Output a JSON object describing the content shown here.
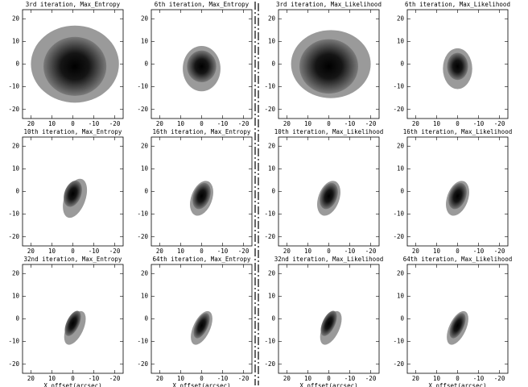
{
  "chart_data": [
    {
      "type": "image",
      "title": "3rd iteration, Max_Entropy",
      "xlim": [
        24,
        -24
      ],
      "ylim": [
        -24,
        24
      ],
      "xticks": [
        20,
        10,
        0,
        -10,
        -20
      ],
      "yticks": [
        -20,
        -10,
        0,
        10,
        20
      ]
    },
    {
      "type": "image",
      "title": "6th iteration, Max_Entropy",
      "xlim": [
        24,
        -24
      ],
      "ylim": [
        -24,
        24
      ],
      "xticks": [
        20,
        10,
        0,
        -10,
        -20
      ],
      "yticks": [
        -20,
        -10,
        0,
        10,
        20
      ]
    },
    {
      "type": "image",
      "title": "3rd iteration, Max_Likelihood",
      "xlim": [
        24,
        -24
      ],
      "ylim": [
        -24,
        24
      ],
      "xticks": [
        20,
        10,
        0,
        -10,
        -20
      ],
      "yticks": [
        -20,
        -10,
        0,
        10,
        20
      ]
    },
    {
      "type": "image",
      "title": "6th iteration, Max_Likelihood",
      "xlim": [
        24,
        -24
      ],
      "ylim": [
        -24,
        24
      ],
      "xticks": [
        20,
        10,
        0,
        -10,
        -20
      ],
      "yticks": [
        -20,
        -10,
        0,
        10,
        20
      ]
    },
    {
      "type": "image",
      "title": "10th iteration, Max_Entropy",
      "xlim": [
        24,
        -24
      ],
      "ylim": [
        -24,
        24
      ],
      "xticks": [
        20,
        10,
        0,
        -10,
        -20
      ],
      "yticks": [
        -20,
        -10,
        0,
        10,
        20
      ]
    },
    {
      "type": "image",
      "title": "16th iteration, Max_Entropy",
      "xlim": [
        24,
        -24
      ],
      "ylim": [
        -24,
        24
      ],
      "xticks": [
        20,
        10,
        0,
        -10,
        -20
      ],
      "yticks": [
        -20,
        -10,
        0,
        10,
        20
      ]
    },
    {
      "type": "image",
      "title": "10th iteration, Max_Likelihood",
      "xlim": [
        24,
        -24
      ],
      "ylim": [
        -24,
        24
      ],
      "xticks": [
        20,
        10,
        0,
        -10,
        -20
      ],
      "yticks": [
        -20,
        -10,
        0,
        10,
        20
      ]
    },
    {
      "type": "image",
      "title": "16th iteration, Max_Likelihood",
      "xlim": [
        24,
        -24
      ],
      "ylim": [
        -24,
        24
      ],
      "xticks": [
        20,
        10,
        0,
        -10,
        -20
      ],
      "yticks": [
        -20,
        -10,
        0,
        10,
        20
      ]
    },
    {
      "type": "image",
      "title": "32nd iteration, Max_Entropy",
      "xlabel": "X offset(arcsec)",
      "xlim": [
        24,
        -24
      ],
      "ylim": [
        -24,
        24
      ],
      "xticks": [
        20,
        10,
        0,
        -10,
        -20
      ],
      "yticks": [
        -20,
        -10,
        0,
        10,
        20
      ]
    },
    {
      "type": "image",
      "title": "64th iteration, Max_Entropy",
      "xlabel": "X offset(arcsec)",
      "xlim": [
        24,
        -24
      ],
      "ylim": [
        -24,
        24
      ],
      "xticks": [
        20,
        10,
        0,
        -10,
        -20
      ],
      "yticks": [
        -20,
        -10,
        0,
        10,
        20
      ]
    },
    {
      "type": "image",
      "title": "32nd iteration, Max_Likelihood",
      "xlabel": "X offset(arcsec)",
      "xlim": [
        24,
        -24
      ],
      "ylim": [
        -24,
        24
      ],
      "xticks": [
        20,
        10,
        0,
        -10,
        -20
      ],
      "yticks": [
        -20,
        -10,
        0,
        10,
        20
      ]
    },
    {
      "type": "image",
      "title": "64th iteration, Max_Likelihood",
      "xlabel": "X offset(arcsec)",
      "xlim": [
        24,
        -24
      ],
      "ylim": [
        -24,
        24
      ],
      "xticks": [
        20,
        10,
        0,
        -10,
        -20
      ],
      "yticks": [
        -20,
        -10,
        0,
        10,
        20
      ]
    }
  ]
}
